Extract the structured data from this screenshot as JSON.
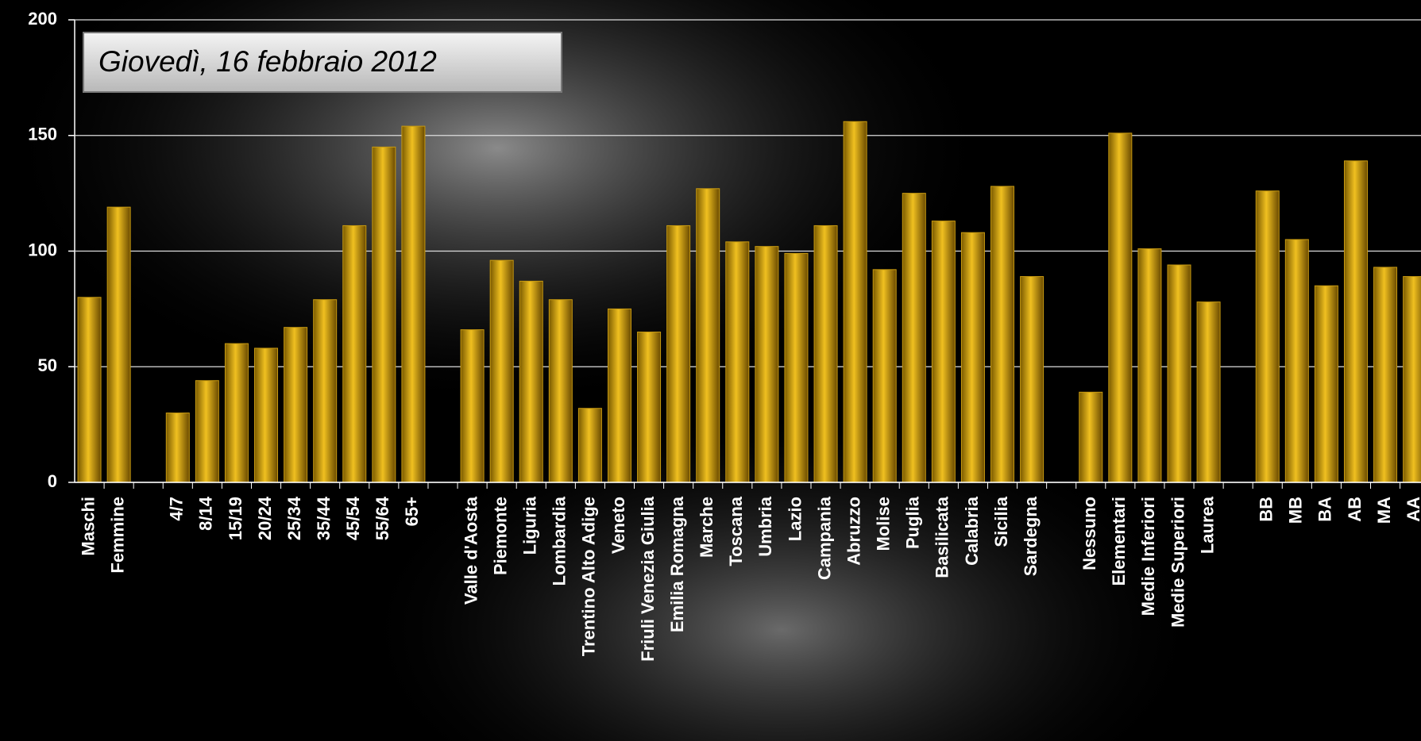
{
  "chart_data": {
    "type": "bar",
    "annotation": "Giovedì, 16 febbraio 2012",
    "categories": [
      "Maschi",
      "Femmine",
      null,
      "4/7",
      "8/14",
      "15/19",
      "20/24",
      "25/34",
      "35/44",
      "45/54",
      "55/64",
      "65+",
      null,
      "Valle d'Aosta",
      "Piemonte",
      "Liguria",
      "Lombardia",
      "Trentino Alto Adige",
      "Veneto",
      "Friuli Venezia Giulia",
      "Emilia Romagna",
      "Marche",
      "Toscana",
      "Umbria",
      "Lazio",
      "Campania",
      "Abruzzo",
      "Molise",
      "Puglia",
      "Basilicata",
      "Calabria",
      "Sicilia",
      "Sardegna",
      null,
      "Nessuno",
      "Elementari",
      "Medie Inferiori",
      "Medie Superiori",
      "Laurea",
      null,
      "BB",
      "MB",
      "BA",
      "AB",
      "MA",
      "AA"
    ],
    "values": [
      80,
      119,
      null,
      30,
      44,
      60,
      58,
      67,
      79,
      111,
      145,
      154,
      null,
      66,
      96,
      87,
      79,
      32,
      75,
      65,
      111,
      127,
      104,
      102,
      99,
      111,
      156,
      92,
      125,
      113,
      108,
      128,
      89,
      null,
      39,
      151,
      101,
      94,
      78,
      null,
      126,
      105,
      85,
      139,
      93,
      89
    ],
    "color": "#c89a10",
    "ylim": [
      0,
      200
    ],
    "yticks": [
      0,
      50,
      100,
      150,
      200
    ],
    "grid": true
  }
}
